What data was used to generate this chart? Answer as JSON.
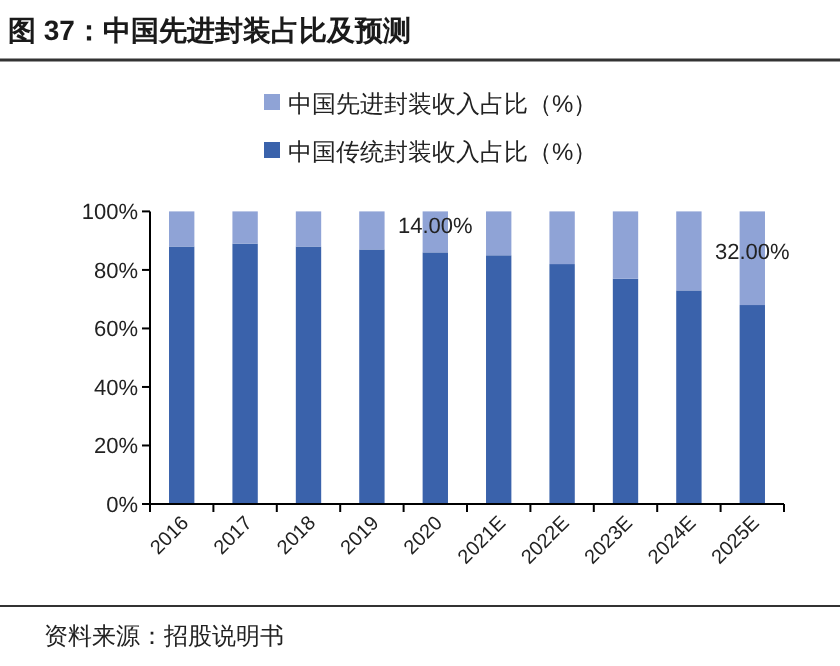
{
  "chart_data": {
    "type": "bar",
    "title": "图 37：中国先进封装占比及预测",
    "stacked": true,
    "categories": [
      "2016",
      "2017",
      "2018",
      "2019",
      "2020",
      "2021E",
      "2022E",
      "2023E",
      "2024E",
      "2025E"
    ],
    "series": [
      {
        "name": "中国传统封装收入占比（%）",
        "color": "#3a62ab",
        "values": [
          88,
          89,
          88,
          87,
          86,
          85,
          82,
          77,
          73,
          68
        ]
      },
      {
        "name": "中国先进封装收入占比（%）",
        "color": "#8fa3d6",
        "values": [
          12,
          11,
          12,
          13,
          14,
          15,
          18,
          23,
          27,
          32
        ],
        "value_labels": [
          null,
          null,
          null,
          null,
          "14.00%",
          null,
          null,
          null,
          null,
          "32.00%"
        ]
      }
    ],
    "ylim": [
      0,
      100
    ],
    "yticks": [
      {
        "value": 0,
        "label": "0%"
      },
      {
        "value": 20,
        "label": "20%"
      },
      {
        "value": 40,
        "label": "40%"
      },
      {
        "value": 60,
        "label": "60%"
      },
      {
        "value": 80,
        "label": "80%"
      },
      {
        "value": 100,
        "label": "100%"
      }
    ],
    "legend": "top",
    "grid": false,
    "annotations": [
      "资料来源：招股说明书"
    ]
  }
}
